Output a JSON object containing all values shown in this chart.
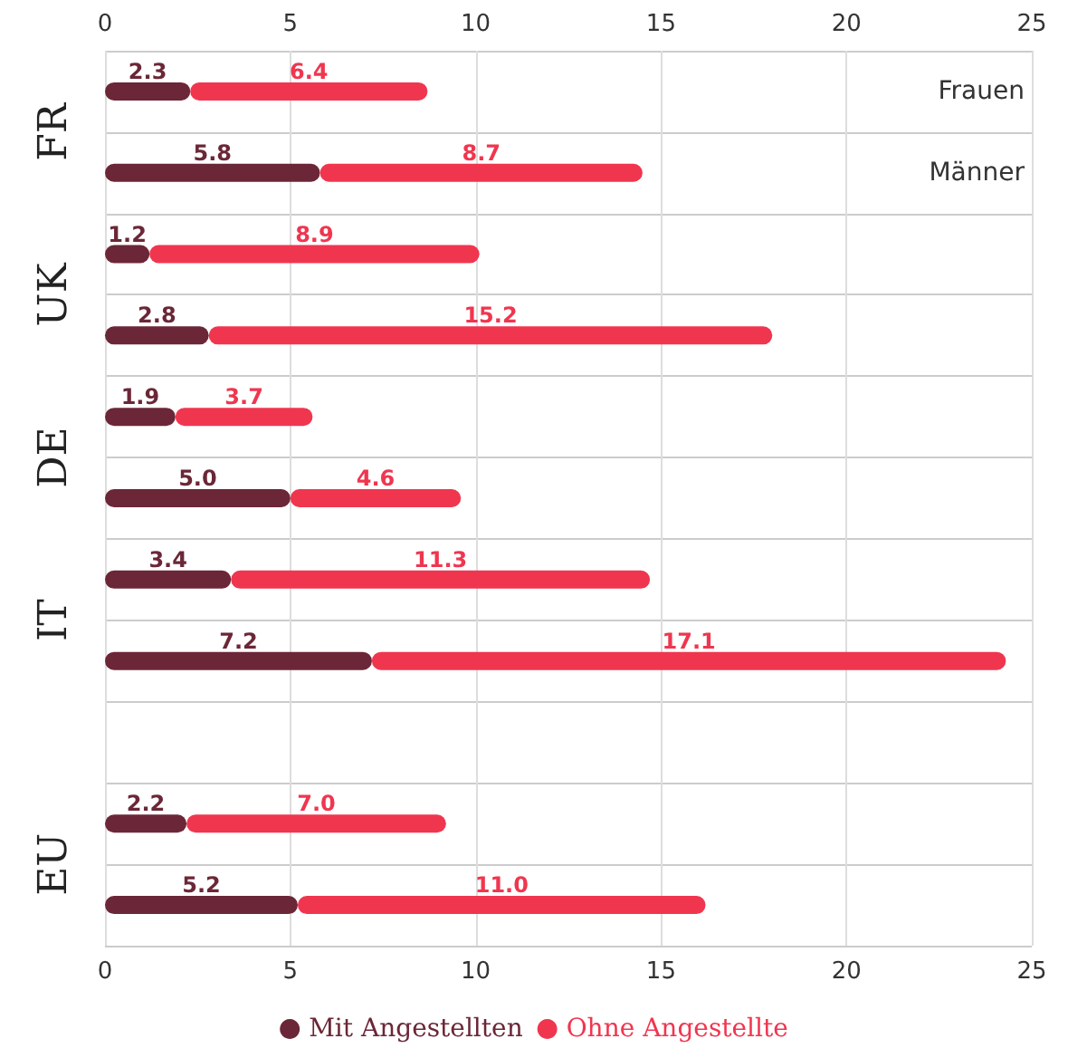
{
  "chart_data": {
    "type": "bar",
    "orientation": "horizontal",
    "stacked": true,
    "categories": [
      null,
      null,
      null,
      null,
      null,
      null,
      null,
      null,
      null,
      null
    ],
    "series": [
      {
        "name": "Mit Angestellten",
        "color": "#6b2737",
        "values": [
          2.3,
          5.8,
          1.2,
          2.8,
          1.9,
          5.0,
          3.4,
          7.2,
          2.2,
          5.2
        ],
        "value_labels": [
          "2.3",
          "5.8",
          "1.2",
          "2.8",
          "1.9",
          "5.0",
          "3.4",
          "7.2",
          "2.2",
          "5.2"
        ]
      },
      {
        "name": "Ohne Angestellte",
        "color": "#f0364f",
        "values": [
          6.4,
          8.7,
          8.9,
          15.2,
          3.7,
          4.6,
          11.3,
          17.1,
          7.0,
          11.0
        ],
        "value_labels": [
          "6.4",
          "8.7",
          "8.9",
          "15.2",
          "3.7",
          "4.6",
          "11.3",
          "17.1",
          "7.0",
          "11.0"
        ]
      }
    ],
    "annotations": [
      "FR",
      "UK",
      "DE",
      "IT",
      "EU",
      "Frauen",
      "Männer"
    ],
    "xlim": [
      0,
      25
    ],
    "xticks": [
      0,
      5,
      10,
      15,
      20,
      25
    ],
    "x2lim": [
      0,
      25
    ],
    "x2ticks": [
      0,
      5,
      10,
      15,
      20,
      25
    ],
    "grid": true,
    "legend": "bottom"
  }
}
